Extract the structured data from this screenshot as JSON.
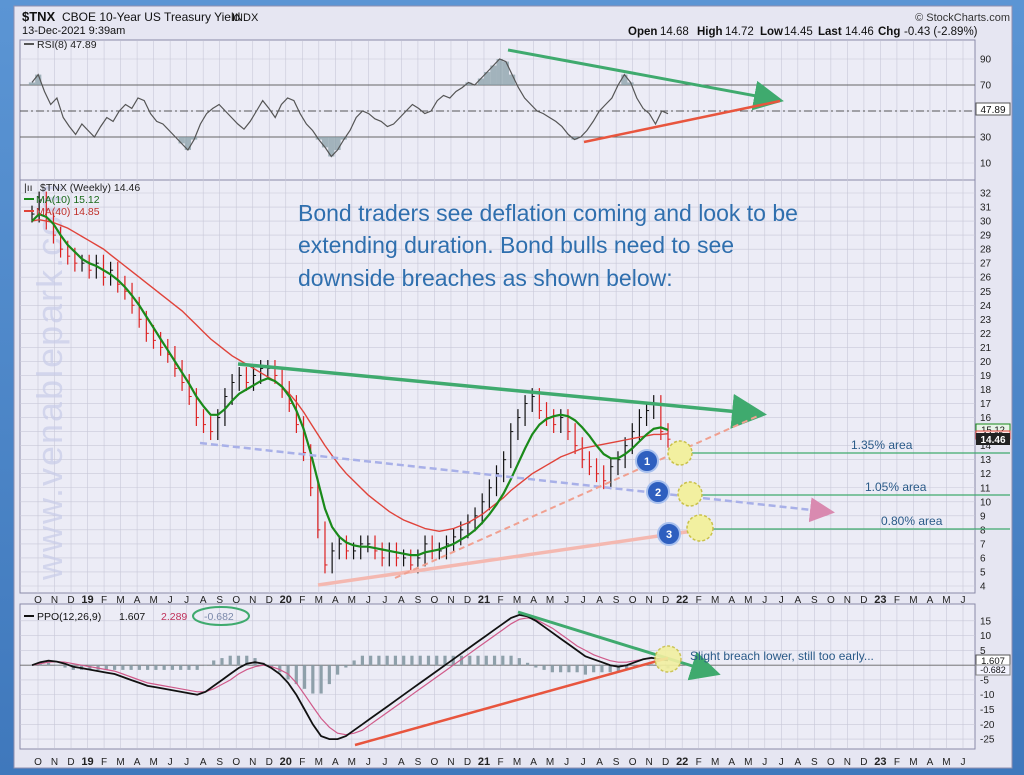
{
  "header": {
    "symbol": "$TNX",
    "name": "CBOE 10-Year US Treasury Yield",
    "exchange": "INDX",
    "date": "13-Dec-2021 9:39am",
    "source": "© StockCharts.com",
    "quote": {
      "open_label": "Open",
      "open": "14.68",
      "high_label": "High",
      "high": "14.72",
      "low_label": "Low",
      "low": "14.45",
      "last_label": "Last",
      "last": "14.46",
      "chg_label": "Chg",
      "chg": "-0.43 (-2.89%)"
    }
  },
  "watermark": "www.venablepark.com",
  "rsi_panel": {
    "label": "RSI(8) 47.89",
    "current_tag": "47.89",
    "y_ticks": [
      "90",
      "70",
      "50",
      "30",
      "10"
    ]
  },
  "price_panel": {
    "label": "$TNX (Weekly) 14.46",
    "ma10_label": "MA(10) 15.12",
    "ma40_label": "MA(40) 14.85",
    "tags": [
      "15.12",
      "14.85",
      "14.46"
    ],
    "y_ticks": [
      "32",
      "31",
      "30",
      "29",
      "28",
      "27",
      "26",
      "25",
      "24",
      "23",
      "22",
      "21",
      "20",
      "19",
      "18",
      "17",
      "16",
      "15",
      "14",
      "13",
      "12",
      "11",
      "10",
      "9",
      "8",
      "7",
      "6",
      "5",
      "4"
    ],
    "annotation_lines": [
      "Bond traders see deflation coming and look to be",
      "extending duration. Bond bulls need to see",
      "downside breaches as shown below:"
    ],
    "levels": [
      {
        "marker": "1",
        "label": "1.35% area",
        "value": 13.5
      },
      {
        "marker": "2",
        "label": "1.05% area",
        "value": 10.5
      },
      {
        "marker": "3",
        "label": "0.80% area",
        "value": 8.0
      }
    ]
  },
  "ppo_panel": {
    "label_a": "PPO(12,26,9)",
    "val_ppo": "1.607",
    "val_signal": "2.289",
    "val_hist": "-0.682",
    "tags": [
      "1.607",
      "-0.682"
    ],
    "y_ticks": [
      "15",
      "10",
      "5",
      "0",
      "-5",
      "-10",
      "-15",
      "-20",
      "-25"
    ],
    "note": "Slight breach lower, still too early..."
  },
  "x_axis_labels": [
    "O",
    "N",
    "D",
    "19",
    "F",
    "M",
    "A",
    "M",
    "J",
    "J",
    "A",
    "S",
    "O",
    "N",
    "D",
    "20",
    "F",
    "M",
    "A",
    "M",
    "J",
    "J",
    "A",
    "S",
    "O",
    "N",
    "D",
    "21",
    "F",
    "M",
    "A",
    "M",
    "J",
    "J",
    "A",
    "S",
    "O",
    "N",
    "D",
    "22",
    "F",
    "M",
    "A",
    "M",
    "J",
    "J",
    "A",
    "S",
    "O",
    "N",
    "D",
    "23",
    "F",
    "M",
    "A",
    "M",
    "J"
  ],
  "colors": {
    "panel_bg": "#ececf6",
    "grid": "#c8c8d8",
    "ma10": "#1a8a1a",
    "ma40": "#e0433a",
    "green_arrow": "#3faa6e",
    "red_line": "#e8553e",
    "text_blue": "#2f6fae",
    "marker": "#2e5fbf"
  },
  "chart_data": [
    {
      "type": "line",
      "title": "RSI(8) 47.89",
      "ylim": [
        0,
        100
      ],
      "series": [
        {
          "name": "RSI(8)",
          "values": [
            72,
            78,
            65,
            55,
            60,
            45,
            38,
            32,
            40,
            35,
            30,
            38,
            45,
            42,
            50,
            55,
            52,
            60,
            58,
            48,
            42,
            40,
            35,
            30,
            25,
            20,
            28,
            40,
            48,
            52,
            55,
            50,
            45,
            40,
            36,
            42,
            50,
            58,
            52,
            45,
            55,
            60,
            58,
            48,
            40,
            35,
            28,
            22,
            15,
            20,
            28,
            35,
            45,
            50,
            48,
            44,
            42,
            38,
            40,
            45,
            50,
            55,
            52,
            48,
            50,
            58,
            62,
            60,
            65,
            68,
            72,
            70,
            75,
            80,
            85,
            90,
            88,
            78,
            68,
            60,
            55,
            50,
            48,
            45,
            42,
            38,
            32,
            28,
            30,
            35,
            42,
            50,
            55,
            60,
            70,
            78,
            72,
            60,
            52,
            48,
            40,
            50,
            47.89
          ]
        }
      ]
    },
    {
      "type": "line",
      "title": "$TNX (Weekly) 14.46",
      "ylim": [
        4,
        32
      ],
      "series": [
        {
          "name": "$TNX (Weekly)",
          "values": [
            30.5,
            31.5,
            30,
            29,
            28,
            27.5,
            27,
            27,
            26.5,
            27,
            26,
            26.5,
            25.5,
            25,
            24,
            23,
            22,
            21.5,
            21,
            20.5,
            19.5,
            18.5,
            17.5,
            16,
            15.5,
            15,
            16,
            17.5,
            18.5,
            19,
            18.5,
            19,
            19.5,
            19.5,
            19,
            18,
            17,
            15.5,
            13.5,
            11,
            8,
            5.5,
            6.5,
            7,
            6.5,
            6.5,
            7,
            7,
            6.5,
            6,
            6.5,
            6,
            6,
            5.5,
            6,
            7,
            6.5,
            6.5,
            7,
            7.5,
            8,
            8.5,
            9,
            10,
            11,
            12,
            13,
            15,
            16,
            17,
            17.5,
            16.5,
            16,
            15.5,
            16,
            15,
            14,
            13,
            12.5,
            12,
            11.5,
            12.5,
            13,
            14,
            15,
            16,
            16.5,
            17,
            15,
            14.46
          ]
        },
        {
          "name": "MA(10)",
          "values": [
            30,
            30.5,
            30.3,
            29.8,
            29,
            28.3,
            27.8,
            27.3,
            27,
            26.8,
            26.5,
            26.2,
            25.8,
            25.3,
            24.7,
            24,
            23.2,
            22.4,
            21.6,
            20.8,
            20,
            19.2,
            18.4,
            17.5,
            16.8,
            16.2,
            16.2,
            16.6,
            17.2,
            17.7,
            18,
            18.3,
            18.6,
            18.8,
            18.6,
            18.2,
            17.5,
            16.5,
            15.2,
            13.5,
            11.5,
            9.5,
            8.2,
            7.5,
            7.1,
            6.9,
            6.8,
            6.8,
            6.7,
            6.6,
            6.5,
            6.4,
            6.3,
            6.2,
            6.2,
            6.4,
            6.5,
            6.6,
            6.8,
            7,
            7.3,
            7.6,
            8,
            8.5,
            9.1,
            9.8,
            10.6,
            11.6,
            12.7,
            13.8,
            14.8,
            15.5,
            15.9,
            16.1,
            16.2,
            16.1,
            15.8,
            15.3,
            14.7,
            14,
            13.4,
            13.1,
            13.1,
            13.4,
            13.8,
            14.3,
            14.8,
            15.2,
            15.3,
            15.12
          ]
        },
        {
          "name": "MA(40)",
          "values": [
            30,
            30.1,
            30,
            29.9,
            29.7,
            29.5,
            29.2,
            28.9,
            28.6,
            28.3,
            28,
            27.6,
            27.2,
            26.8,
            26.4,
            26,
            25.6,
            25.2,
            24.8,
            24.4,
            24,
            23.6,
            23.1,
            22.6,
            22.1,
            21.6,
            21.2,
            20.8,
            20.4,
            20.1,
            19.8,
            19.5,
            19.2,
            18.9,
            18.6,
            18.2,
            17.7,
            17.1,
            16.4,
            15.6,
            14.8,
            14,
            13.3,
            12.6,
            12,
            11.5,
            11,
            10.5,
            10.1,
            9.7,
            9.3,
            9,
            8.7,
            8.5,
            8.3,
            8.1,
            8,
            7.9,
            8,
            8.1,
            8.3,
            8.5,
            8.8,
            9.1,
            9.5,
            9.9,
            10.3,
            10.8,
            11.2,
            11.6,
            12,
            12.3,
            12.6,
            12.9,
            13.2,
            13.4,
            13.6,
            13.8,
            13.9,
            14,
            14.1,
            14.2,
            14.3,
            14.4,
            14.5,
            14.6,
            14.7,
            14.8,
            14.8,
            14.85
          ]
        }
      ]
    },
    {
      "type": "line",
      "title": "PPO(12,26,9)",
      "ylim": [
        -27,
        19
      ],
      "series": [
        {
          "name": "PPO",
          "values": [
            0,
            1,
            1.5,
            1.2,
            0.5,
            -0.5,
            -1,
            -1.5,
            -2,
            -2.5,
            -3,
            -4,
            -5,
            -6,
            -7,
            -7.5,
            -8,
            -8.5,
            -9,
            -9.5,
            -10,
            -9,
            -7,
            -5,
            -3,
            -1,
            0.5,
            1,
            0.5,
            -1,
            -3,
            -6,
            -10,
            -15,
            -20,
            -24,
            -25,
            -25,
            -24,
            -22,
            -20,
            -18,
            -16,
            -14,
            -12,
            -10,
            -8,
            -6,
            -4,
            -2,
            0,
            2,
            4,
            6,
            8,
            10,
            12,
            14,
            16,
            17,
            16.5,
            15,
            13,
            11,
            9,
            7,
            5,
            3,
            2,
            1,
            0,
            -0.5,
            0,
            1,
            2,
            2.5,
            2,
            1.607
          ]
        },
        {
          "name": "Signal",
          "values": [
            0,
            0.5,
            1,
            1.2,
            1,
            0.5,
            0,
            -0.5,
            -1,
            -1.5,
            -2,
            -3,
            -4,
            -5,
            -6,
            -6.5,
            -7,
            -7.5,
            -8,
            -8.5,
            -9,
            -9,
            -8,
            -6.5,
            -5,
            -3,
            -1.5,
            -0.5,
            0,
            -0.5,
            -1.5,
            -3,
            -6,
            -10,
            -14,
            -18,
            -21,
            -23,
            -23.5,
            -23,
            -22,
            -20,
            -18,
            -16,
            -14,
            -12,
            -10,
            -8,
            -6,
            -4,
            -2,
            0,
            2,
            4,
            6,
            8,
            10,
            12,
            14,
            15.5,
            16,
            15.5,
            14,
            12.5,
            10.5,
            8.5,
            6.5,
            5,
            3.5,
            2.5,
            1.5,
            1,
            1,
            1.5,
            2,
            2.3,
            2.3,
            2.289
          ]
        }
      ]
    }
  ]
}
